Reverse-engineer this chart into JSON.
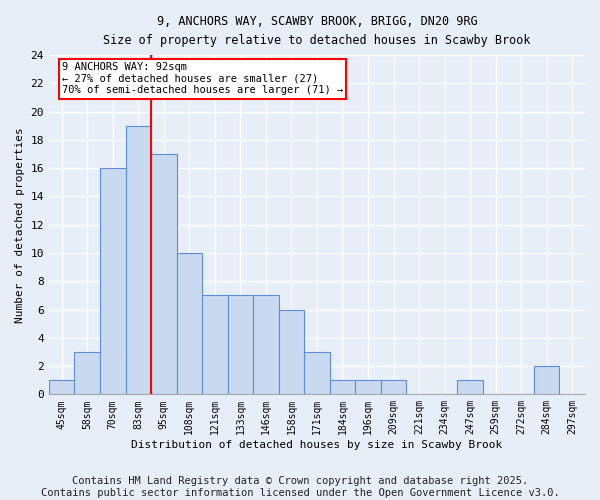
{
  "title1": "9, ANCHORS WAY, SCAWBY BROOK, BRIGG, DN20 9RG",
  "title2": "Size of property relative to detached houses in Scawby Brook",
  "xlabel": "Distribution of detached houses by size in Scawby Brook",
  "ylabel": "Number of detached properties",
  "bin_labels": [
    "45sqm",
    "58sqm",
    "70sqm",
    "83sqm",
    "95sqm",
    "108sqm",
    "121sqm",
    "133sqm",
    "146sqm",
    "158sqm",
    "171sqm",
    "184sqm",
    "196sqm",
    "209sqm",
    "221sqm",
    "234sqm",
    "247sqm",
    "259sqm",
    "272sqm",
    "284sqm",
    "297sqm"
  ],
  "bar_values": [
    1,
    3,
    16,
    19,
    17,
    10,
    7,
    7,
    7,
    6,
    3,
    1,
    1,
    1,
    0,
    0,
    1,
    0,
    0,
    2,
    0
  ],
  "bar_color": "#c9d9f0",
  "bar_edge_color": "#5b8dd9",
  "background_color": "#e8eef8",
  "grid_color": "#ffffff",
  "vline_x": 3.5,
  "vline_color": "red",
  "annotation_text": "9 ANCHORS WAY: 92sqm\n← 27% of detached houses are smaller (27)\n70% of semi-detached houses are larger (71) →",
  "annotation_box_color": "white",
  "annotation_box_edge": "red",
  "ylim": [
    0,
    24
  ],
  "yticks": [
    0,
    2,
    4,
    6,
    8,
    10,
    12,
    14,
    16,
    18,
    20,
    22,
    24
  ],
  "footer": "Contains HM Land Registry data © Crown copyright and database right 2025.\nContains public sector information licensed under the Open Government Licence v3.0.",
  "footer_fontsize": 7.5
}
